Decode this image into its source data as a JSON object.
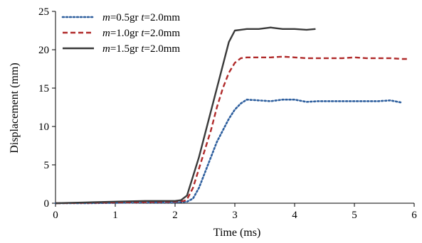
{
  "chart_data": {
    "type": "line",
    "title": "",
    "xlabel": "Time (ms)",
    "ylabel": "Displacement (mm)",
    "xlim": [
      0,
      6
    ],
    "ylim": [
      0,
      25
    ],
    "x_ticks": [
      0,
      1,
      2,
      3,
      4,
      5,
      6
    ],
    "y_ticks": [
      0,
      5,
      10,
      15,
      20,
      25
    ],
    "x_tick_labels": [
      "0",
      "1",
      "2",
      "3",
      "4",
      "5",
      "6"
    ],
    "y_tick_labels": [
      "0",
      "5",
      "10",
      "15",
      "20",
      "25"
    ],
    "grid": false,
    "legend_position": "top-left",
    "series": [
      {
        "name": "m=0.5gr t=2.0mm",
        "legend": {
          "m_var": "m",
          "m_text": "=0.5gr ",
          "t_var": "t",
          "t_text": "=2.0mm"
        },
        "color": "#2e5f9e",
        "dash": "dotted",
        "x": [
          0,
          0.5,
          1,
          1.5,
          2,
          2.2,
          2.3,
          2.4,
          2.5,
          2.6,
          2.7,
          2.8,
          2.9,
          3.0,
          3.1,
          3.2,
          3.4,
          3.6,
          3.8,
          4.0,
          4.2,
          4.4,
          4.6,
          4.8,
          5.0,
          5.2,
          5.4,
          5.6,
          5.8
        ],
        "y": [
          0,
          0,
          0.05,
          0.1,
          0.1,
          0.2,
          0.6,
          2.0,
          4.0,
          6.0,
          8.0,
          9.5,
          11.0,
          12.2,
          13.0,
          13.5,
          13.4,
          13.3,
          13.5,
          13.5,
          13.2,
          13.3,
          13.3,
          13.3,
          13.3,
          13.3,
          13.3,
          13.4,
          13.1
        ]
      },
      {
        "name": "m=1.0gr t=2.0mm",
        "legend": {
          "m_var": "m",
          "m_text": "=1.0gr ",
          "t_var": "t",
          "t_text": "=2.0mm"
        },
        "color": "#b02a2a",
        "dash": "dashed",
        "x": [
          0,
          0.5,
          1,
          1.5,
          2,
          2.15,
          2.2,
          2.3,
          2.4,
          2.5,
          2.6,
          2.7,
          2.8,
          2.9,
          3.0,
          3.1,
          3.2,
          3.4,
          3.6,
          3.8,
          4.0,
          4.2,
          4.4,
          4.6,
          4.8,
          5.0,
          5.2,
          5.4,
          5.6,
          5.8,
          5.9
        ],
        "y": [
          0,
          0.05,
          0.1,
          0.15,
          0.2,
          0.3,
          0.5,
          2.0,
          4.5,
          7.0,
          9.5,
          12.5,
          15.0,
          17.0,
          18.3,
          18.9,
          19.0,
          19.0,
          19.0,
          19.1,
          19.0,
          18.9,
          18.9,
          18.9,
          18.9,
          19.0,
          18.9,
          18.9,
          18.9,
          18.8,
          18.8
        ]
      },
      {
        "name": "m=1.5gr t=2.0mm",
        "legend": {
          "m_var": "m",
          "m_text": "=1.5gr ",
          "t_var": "t",
          "t_text": "=2.0mm"
        },
        "color": "#3a3a3a",
        "dash": "solid",
        "x": [
          0,
          0.5,
          1,
          1.5,
          2,
          2.1,
          2.2,
          2.3,
          2.4,
          2.5,
          2.6,
          2.7,
          2.8,
          2.9,
          3.0,
          3.1,
          3.2,
          3.4,
          3.6,
          3.7,
          3.8,
          4.0,
          4.2,
          4.35
        ],
        "y": [
          0,
          0.1,
          0.2,
          0.3,
          0.3,
          0.4,
          1.0,
          3.5,
          6.0,
          9.0,
          12.0,
          15.0,
          18.0,
          21.0,
          22.5,
          22.6,
          22.7,
          22.7,
          22.9,
          22.8,
          22.7,
          22.7,
          22.6,
          22.7
        ]
      }
    ]
  }
}
